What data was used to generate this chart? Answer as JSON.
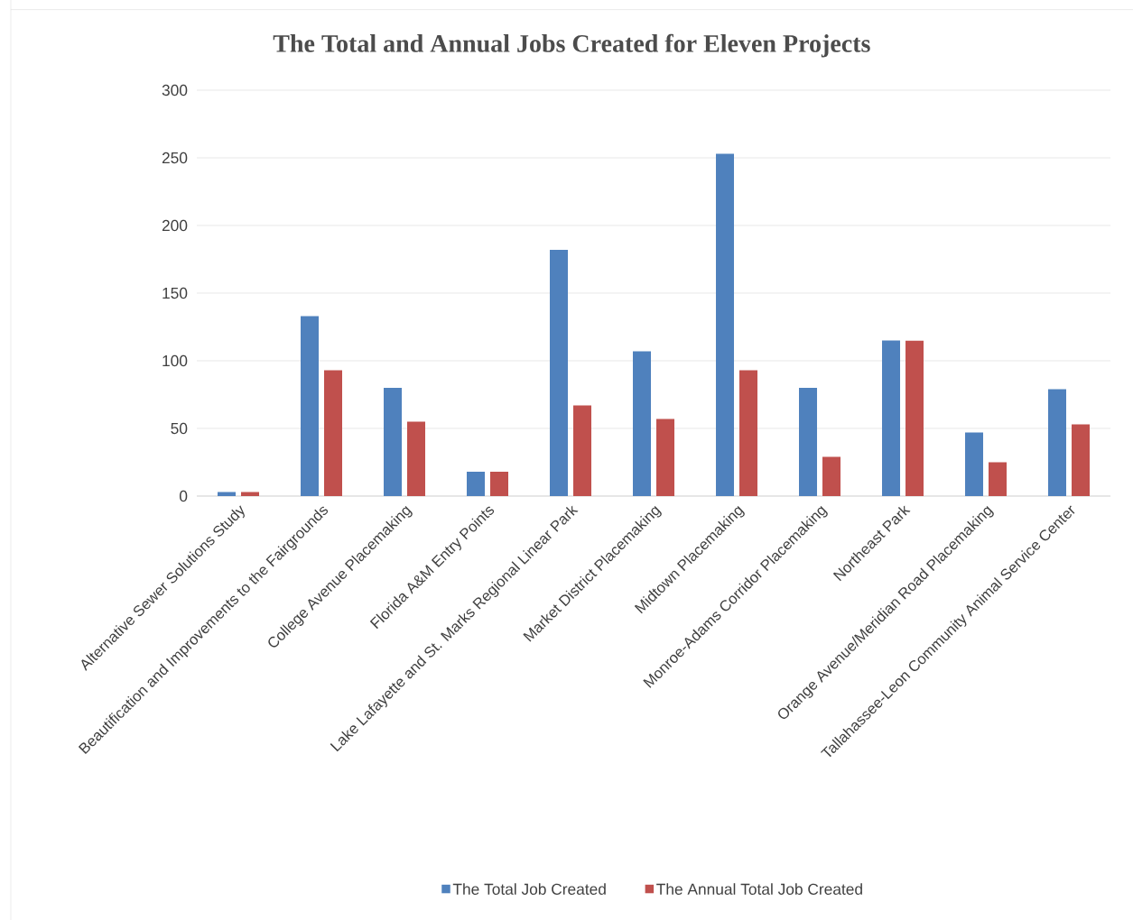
{
  "chart_data": {
    "type": "bar",
    "title": "The Total and Annual Jobs Created for Eleven Projects",
    "categories": [
      "Alternative Sewer Solutions Study",
      "Beautification and Improvements to the Fairgrounds",
      "College Avenue Placemaking",
      "Florida A&M Entry Points",
      "Lake Lafayette and St. Marks Regional Linear Park",
      "Market District Placemaking",
      "Midtown Placemaking",
      "Monroe-Adams Corridor Placemaking",
      "Northeast Park",
      "Orange Avenue/Meridian Road Placemaking",
      "Tallahassee-Leon Community Animal Service Center"
    ],
    "series": [
      {
        "name": "The Total Job Created",
        "color": "#4f81bd",
        "values": [
          3,
          133,
          80,
          18,
          182,
          107,
          253,
          80,
          115,
          47,
          79
        ]
      },
      {
        "name": "The Annual Total Job Created",
        "color": "#c0504d",
        "values": [
          3,
          93,
          55,
          18,
          67,
          57,
          93,
          29,
          115,
          25,
          53
        ]
      }
    ],
    "ylim": [
      0,
      300
    ],
    "yticks": [
      0,
      50,
      100,
      150,
      200,
      250,
      300
    ],
    "grid": "y",
    "legend": "bottom"
  }
}
